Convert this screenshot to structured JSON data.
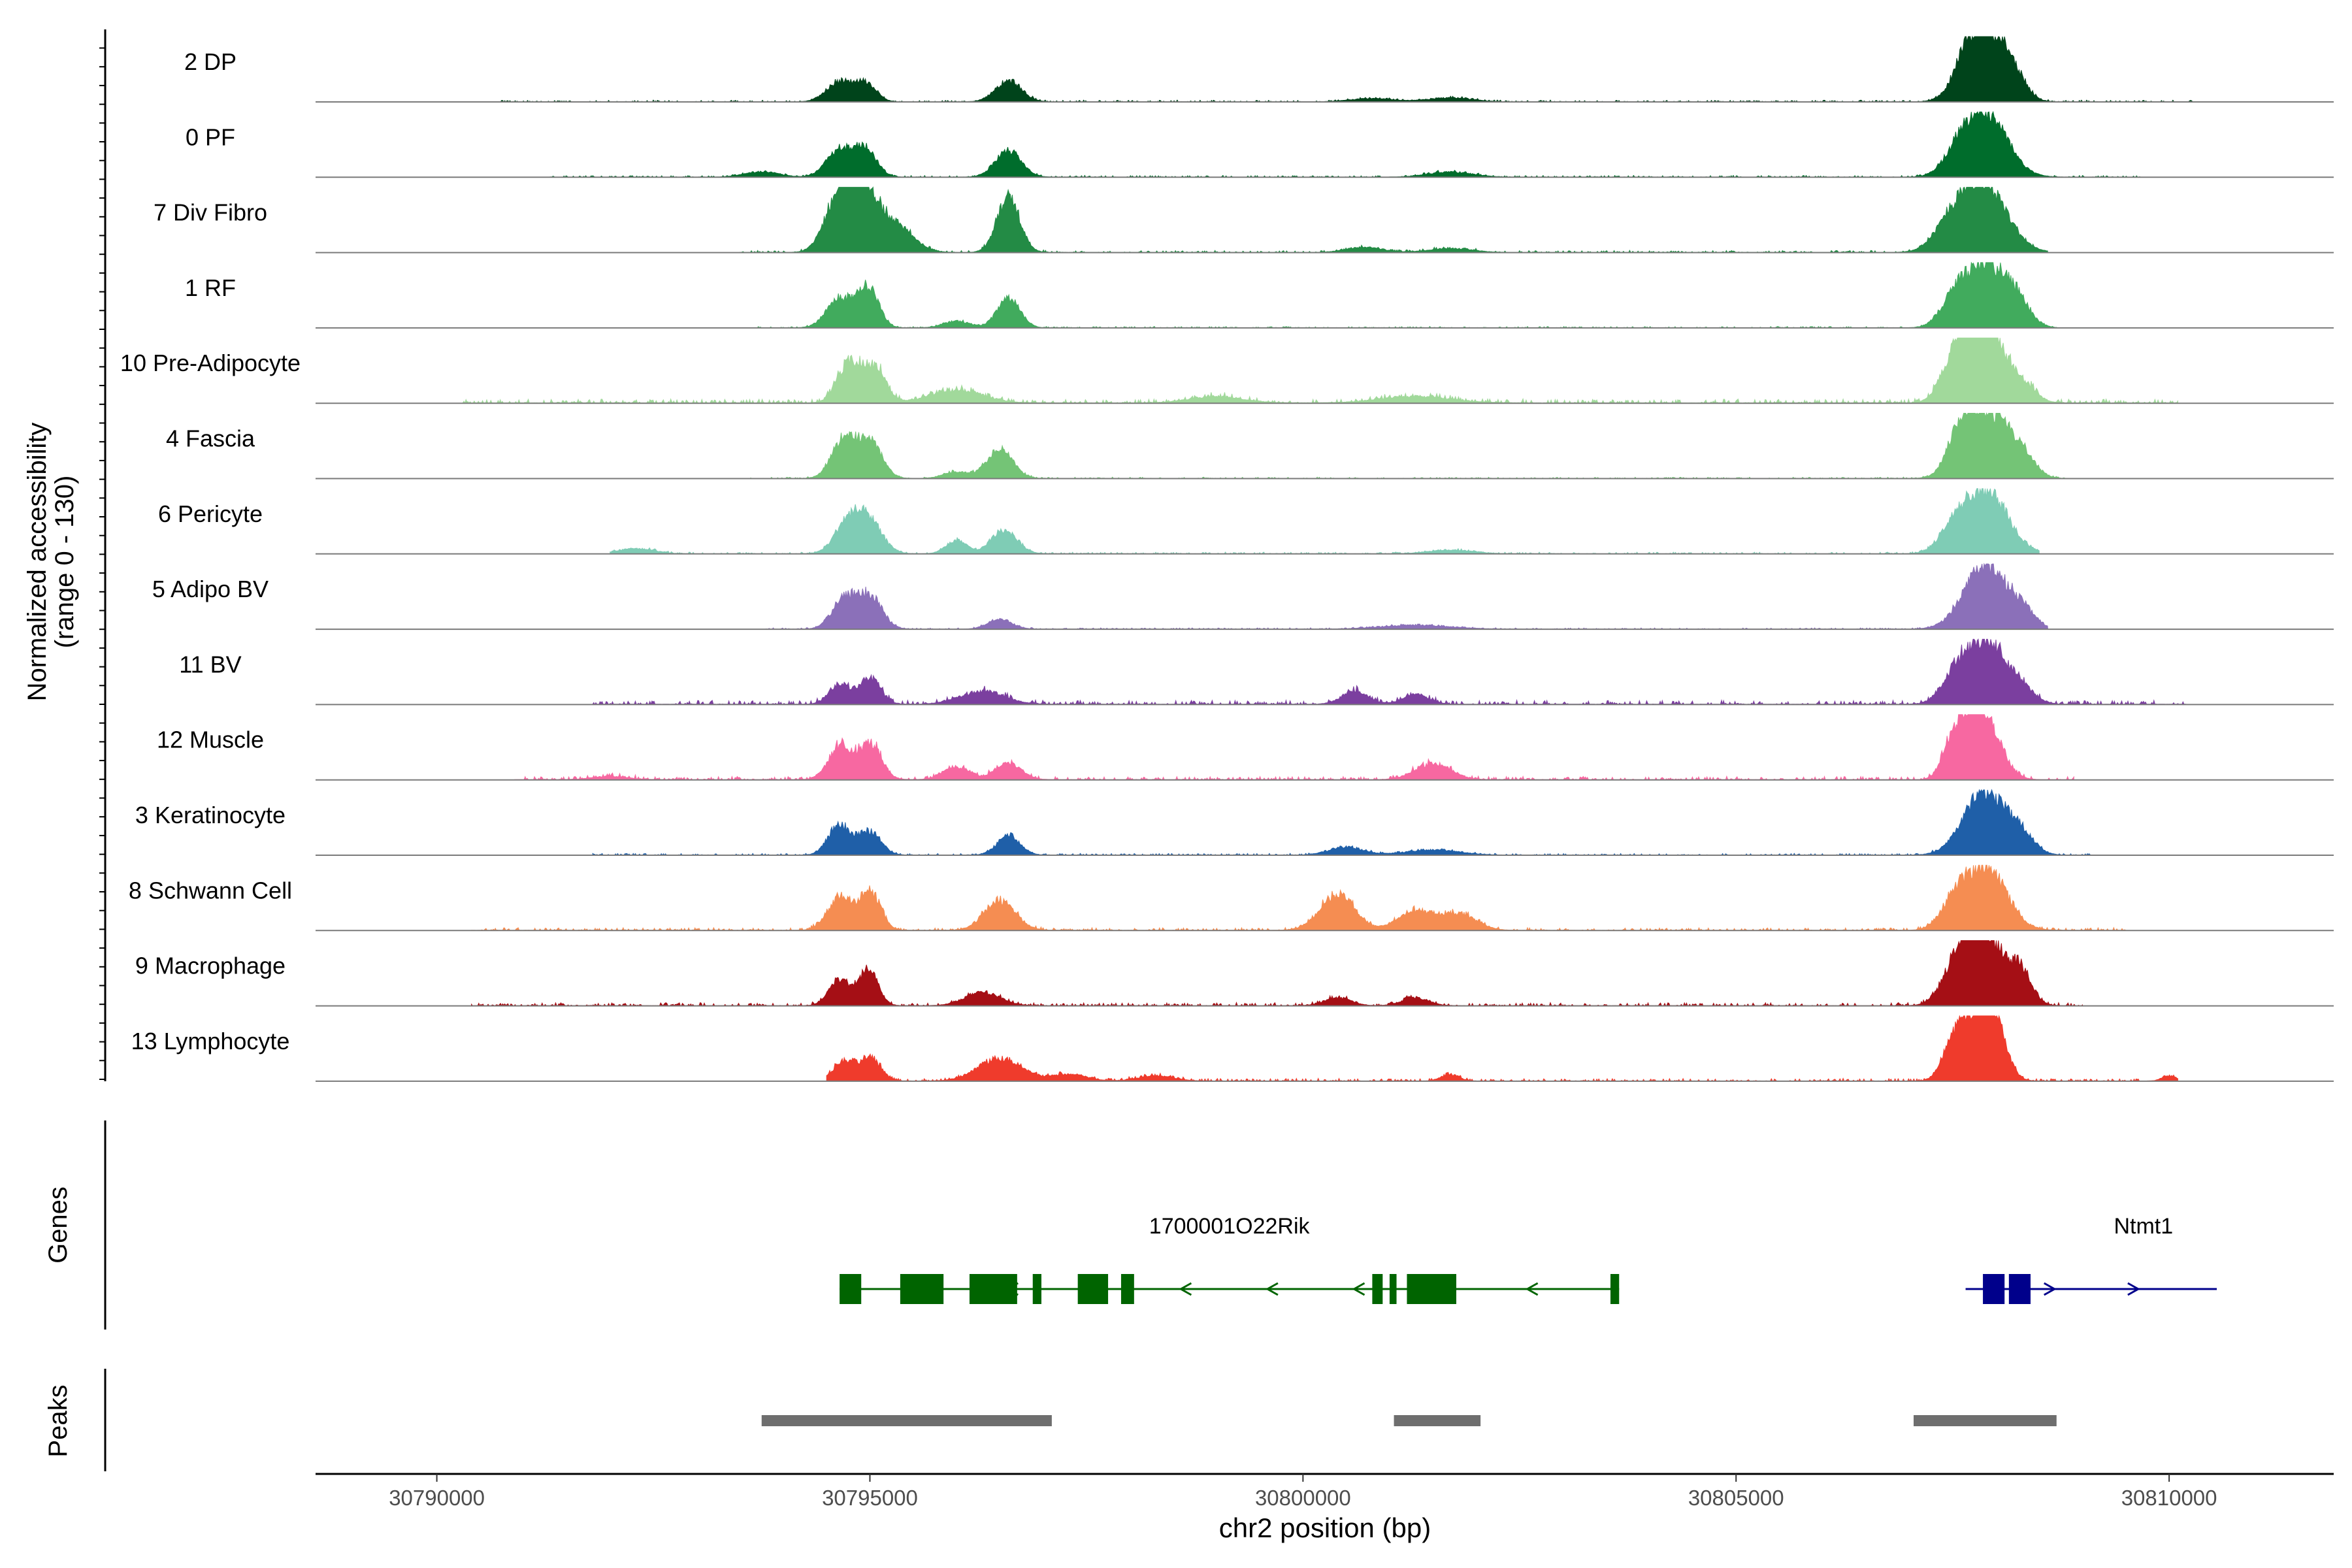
{
  "chart_data": {
    "type": "area",
    "xlabel": "chr2 position (bp)",
    "ylabel_line1": "Normalized accessibility",
    "ylabel_line2": "(range 0 - 130)",
    "y_range": [
      0,
      130
    ],
    "xlim": [
      30788600,
      30811900
    ],
    "xticks": [
      30790000,
      30795000,
      30800000,
      30805000,
      30810000
    ],
    "xtick_labels": [
      "30790000",
      "30795000",
      "30800000",
      "30805000",
      "30810000"
    ],
    "peak_centers": [
      30794800,
      30795000,
      30796400,
      30807700,
      30807900,
      30808100
    ],
    "tracks": [
      {
        "name": "2 DP",
        "color": "#00441b",
        "peaks": [
          [
            30794650,
            0.3,
            150
          ],
          [
            30794950,
            0.28,
            120
          ],
          [
            30796600,
            0.32,
            150
          ],
          [
            30807650,
            0.3,
            150
          ],
          [
            30807870,
            1.0,
            220
          ],
          [
            30808180,
            0.35,
            150
          ],
          [
            30800800,
            0.05,
            250
          ],
          [
            30801700,
            0.06,
            250
          ]
        ],
        "spread": [
          30790700,
          30810300,
          0.025
        ]
      },
      {
        "name": "0 PF",
        "color": "#006d2c",
        "peaks": [
          [
            30794650,
            0.42,
            150
          ],
          [
            30794950,
            0.4,
            130
          ],
          [
            30796600,
            0.4,
            150
          ],
          [
            30807870,
            1.0,
            250
          ],
          [
            30807550,
            0.2,
            150
          ],
          [
            30793750,
            0.08,
            200
          ],
          [
            30801700,
            0.08,
            250
          ]
        ],
        "spread": [
          30791300,
          30809700,
          0.025
        ]
      },
      {
        "name": "7 Div Fibro",
        "color": "#238b45",
        "peaks": [
          [
            30794650,
            0.9,
            160
          ],
          [
            30794950,
            0.85,
            160
          ],
          [
            30795300,
            0.4,
            200
          ],
          [
            30796600,
            0.85,
            130
          ],
          [
            30807870,
            1.0,
            260
          ],
          [
            30807500,
            0.4,
            200
          ],
          [
            30800700,
            0.08,
            200
          ],
          [
            30801700,
            0.06,
            250
          ]
        ],
        "spread": [
          30793500,
          30808600,
          0.03
        ]
      },
      {
        "name": "1 RF",
        "color": "#41ab5d",
        "peaks": [
          [
            30794650,
            0.45,
            150
          ],
          [
            30794980,
            0.6,
            120
          ],
          [
            30796600,
            0.45,
            130
          ],
          [
            30796000,
            0.1,
            150
          ],
          [
            30807870,
            1.0,
            240
          ],
          [
            30807500,
            0.3,
            150
          ],
          [
            30808250,
            0.3,
            150
          ]
        ],
        "spread": [
          30793700,
          30808700,
          0.02
        ]
      },
      {
        "name": "10 Pre-Adipocyte",
        "color": "#a1d99b",
        "peaks": [
          [
            30794750,
            0.6,
            130
          ],
          [
            30795050,
            0.55,
            130
          ],
          [
            30796000,
            0.2,
            300
          ],
          [
            30807700,
            0.8,
            160
          ],
          [
            30807950,
            1.0,
            160
          ],
          [
            30807500,
            0.5,
            150
          ],
          [
            30808300,
            0.3,
            150
          ],
          [
            30799000,
            0.1,
            300
          ],
          [
            30801300,
            0.1,
            400
          ]
        ],
        "spread": [
          30790300,
          30810100,
          0.06
        ]
      },
      {
        "name": "4 Fascia",
        "color": "#74c476",
        "peaks": [
          [
            30794700,
            0.6,
            140
          ],
          [
            30795000,
            0.55,
            140
          ],
          [
            30796500,
            0.45,
            150
          ],
          [
            30807600,
            0.55,
            150
          ],
          [
            30807900,
            1.0,
            240
          ],
          [
            30808300,
            0.3,
            150
          ],
          [
            30796000,
            0.1,
            150
          ]
        ],
        "spread": [
          30793600,
          30808800,
          0.02
        ]
      },
      {
        "name": "6 Pericyte",
        "color": "#7fccb5",
        "peaks": [
          [
            30794750,
            0.5,
            150
          ],
          [
            30795000,
            0.45,
            150
          ],
          [
            30796000,
            0.2,
            120
          ],
          [
            30796550,
            0.35,
            150
          ],
          [
            30807880,
            1.0,
            250
          ],
          [
            30807500,
            0.3,
            150
          ],
          [
            30792300,
            0.08,
            200
          ],
          [
            30801700,
            0.06,
            250
          ]
        ],
        "spread": [
          30792000,
          30808500,
          0.025
        ]
      },
      {
        "name": "5 Adipo BV",
        "color": "#8b70b9",
        "peaks": [
          [
            30794700,
            0.45,
            140
          ],
          [
            30795000,
            0.5,
            140
          ],
          [
            30796500,
            0.15,
            140
          ],
          [
            30807870,
            1.0,
            240
          ],
          [
            30808300,
            0.25,
            150
          ],
          [
            30801300,
            0.06,
            400
          ]
        ],
        "spread": [
          30793800,
          30808600,
          0.02
        ]
      },
      {
        "name": "11 BV",
        "color": "#7b3f9f",
        "peaks": [
          [
            30794650,
            0.3,
            120
          ],
          [
            30795000,
            0.4,
            120
          ],
          [
            30796300,
            0.2,
            250
          ],
          [
            30800600,
            0.2,
            150
          ],
          [
            30801300,
            0.15,
            150
          ],
          [
            30807870,
            1.0,
            230
          ],
          [
            30807500,
            0.3,
            150
          ],
          [
            30808300,
            0.2,
            150
          ]
        ],
        "spread": [
          30791800,
          30810200,
          0.06
        ]
      },
      {
        "name": "12 Muscle",
        "color": "#f768a1",
        "peaks": [
          [
            30794650,
            0.5,
            130
          ],
          [
            30795000,
            0.55,
            130
          ],
          [
            30796000,
            0.2,
            150
          ],
          [
            30796600,
            0.25,
            150
          ],
          [
            30801500,
            0.25,
            200
          ],
          [
            30807700,
            1.0,
            160
          ],
          [
            30807950,
            0.6,
            160
          ],
          [
            30807450,
            0.3,
            100
          ],
          [
            30792000,
            0.05,
            200
          ]
        ],
        "spread": [
          30790900,
          30808900,
          0.05
        ]
      },
      {
        "name": "3 Keratinocyte",
        "color": "#1f5fa8",
        "peaks": [
          [
            30794650,
            0.45,
            130
          ],
          [
            30795000,
            0.35,
            130
          ],
          [
            30796600,
            0.3,
            130
          ],
          [
            30800500,
            0.12,
            200
          ],
          [
            30807870,
            1.0,
            240
          ],
          [
            30808300,
            0.25,
            150
          ],
          [
            30801500,
            0.08,
            300
          ]
        ],
        "spread": [
          30791800,
          30809200,
          0.025
        ]
      },
      {
        "name": "8 Schwann Cell",
        "color": "#f58d52",
        "peaks": [
          [
            30794650,
            0.5,
            140
          ],
          [
            30795000,
            0.6,
            120
          ],
          [
            30796500,
            0.45,
            180
          ],
          [
            30800400,
            0.55,
            200
          ],
          [
            30801300,
            0.3,
            200
          ],
          [
            30801800,
            0.25,
            200
          ],
          [
            30807870,
            1.0,
            240
          ],
          [
            30807500,
            0.3,
            150
          ]
        ],
        "spread": [
          30790400,
          30809500,
          0.04
        ]
      },
      {
        "name": "9 Macrophage",
        "color": "#a50f15",
        "peaks": [
          [
            30794650,
            0.4,
            120
          ],
          [
            30794980,
            0.55,
            110
          ],
          [
            30796300,
            0.2,
            200
          ],
          [
            30800400,
            0.12,
            150
          ],
          [
            30801300,
            0.12,
            150
          ],
          [
            30807600,
            0.7,
            180
          ],
          [
            30807900,
            1.0,
            220
          ],
          [
            30808300,
            0.45,
            120
          ]
        ],
        "spread": [
          30790400,
          30809000,
          0.045
        ]
      },
      {
        "name": "13 Lymphocyte",
        "color": "#ef3b2c",
        "peaks": [
          [
            30794700,
            0.3,
            120
          ],
          [
            30795000,
            0.35,
            120
          ],
          [
            30796500,
            0.35,
            250
          ],
          [
            30797300,
            0.1,
            200
          ],
          [
            30798300,
            0.08,
            200
          ],
          [
            30801700,
            0.1,
            100
          ],
          [
            30807520,
            0.5,
            130
          ],
          [
            30807800,
            1.0,
            180
          ],
          [
            30808000,
            0.55,
            130
          ],
          [
            30810000,
            0.08,
            80
          ]
        ],
        "spread": [
          30794500,
          30810100,
          0.04
        ]
      }
    ],
    "genes_label": "Genes",
    "genes": [
      {
        "name": "1700001O22Rik",
        "color": "#006400",
        "strand": "-",
        "start": 30794650,
        "end": 30803650,
        "exons": [
          [
            30794650,
            30794900
          ],
          [
            30795350,
            30795850
          ],
          [
            30796150,
            30796700
          ],
          [
            30796880,
            30796980
          ],
          [
            30797400,
            30797750
          ],
          [
            30797900,
            30798050
          ],
          [
            30800800,
            30800920
          ],
          [
            30801000,
            30801080
          ],
          [
            30801200,
            30801770
          ],
          [
            30803550,
            30803650
          ]
        ]
      },
      {
        "name": "Ntmt1",
        "color": "#00008b",
        "strand": "+",
        "start": 30807650,
        "end": 30810550,
        "exons": [
          [
            30807850,
            30808100
          ],
          [
            30808150,
            30808400
          ]
        ]
      }
    ],
    "peaks_label": "Peaks",
    "peaks": [
      [
        30793750,
        30797100
      ],
      [
        30801050,
        30802050
      ],
      [
        30807050,
        30808700
      ]
    ]
  }
}
